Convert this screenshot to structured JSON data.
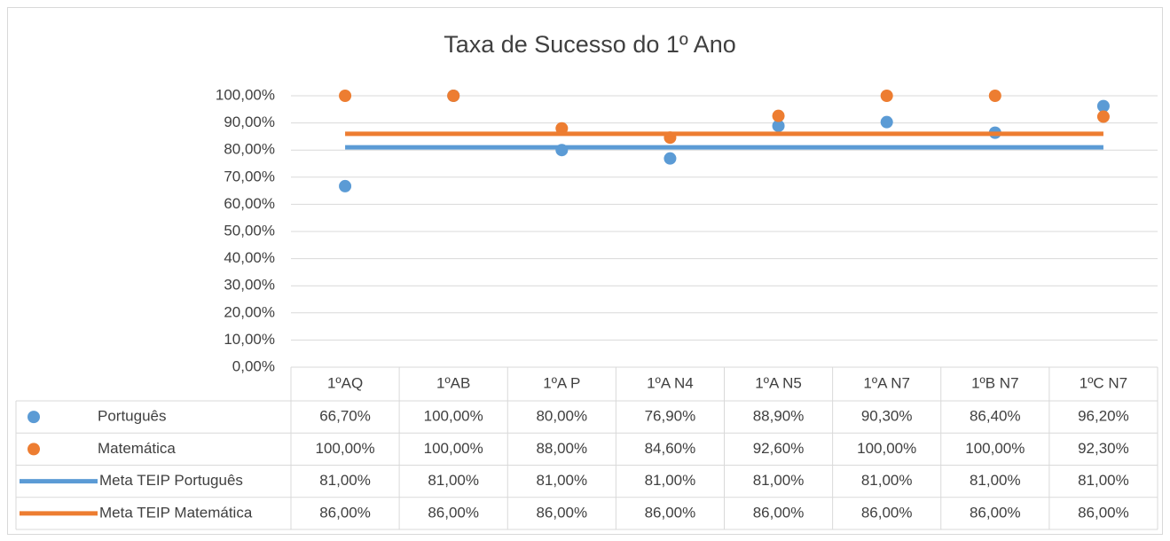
{
  "chart_data": {
    "type": "scatter",
    "title": "Taxa de Sucesso do 1º Ano",
    "categories": [
      "1ºAQ",
      "1ºAB",
      "1ºA P",
      "1ºA N4",
      "1ºA N5",
      "1ºA N7",
      "1ºB N7",
      "1ºC N7"
    ],
    "series": [
      {
        "name": "Português",
        "type": "scatter",
        "color": "#5b9bd5",
        "values": [
          66.7,
          100,
          80,
          76.9,
          88.9,
          90.3,
          86.4,
          96.2
        ],
        "value_labels": [
          "66,70%",
          "100,00%",
          "80,00%",
          "76,90%",
          "88,90%",
          "90,30%",
          "86,40%",
          "96,20%"
        ]
      },
      {
        "name": "Matemática",
        "type": "scatter",
        "color": "#ed7d31",
        "values": [
          100,
          100,
          88,
          84.6,
          92.6,
          100,
          100,
          92.3
        ],
        "value_labels": [
          "100,00%",
          "100,00%",
          "88,00%",
          "84,60%",
          "92,60%",
          "100,00%",
          "100,00%",
          "92,30%"
        ]
      },
      {
        "name": "Meta TEIP Português",
        "type": "line",
        "color": "#5b9bd5",
        "values": [
          81,
          81,
          81,
          81,
          81,
          81,
          81,
          81
        ],
        "value_labels": [
          "81,00%",
          "81,00%",
          "81,00%",
          "81,00%",
          "81,00%",
          "81,00%",
          "81,00%",
          "81,00%"
        ]
      },
      {
        "name": "Meta TEIP Matemática",
        "type": "line",
        "color": "#ed7d31",
        "values": [
          86,
          86,
          86,
          86,
          86,
          86,
          86,
          86
        ],
        "value_labels": [
          "86,00%",
          "86,00%",
          "86,00%",
          "86,00%",
          "86,00%",
          "86,00%",
          "86,00%",
          "86,00%"
        ]
      }
    ],
    "ylim": [
      0,
      100
    ],
    "yticks": [
      {
        "value": 0,
        "label": "0,00%"
      },
      {
        "value": 10,
        "label": "10,00%"
      },
      {
        "value": 20,
        "label": "20,00%"
      },
      {
        "value": 30,
        "label": "30,00%"
      },
      {
        "value": 40,
        "label": "40,00%"
      },
      {
        "value": 50,
        "label": "50,00%"
      },
      {
        "value": 60,
        "label": "60,00%"
      },
      {
        "value": 70,
        "label": "70,00%"
      },
      {
        "value": 80,
        "label": "80,00%"
      },
      {
        "value": 90,
        "label": "90,00%"
      },
      {
        "value": 100,
        "label": "100,00%"
      }
    ],
    "grid": true,
    "data_table": true
  }
}
